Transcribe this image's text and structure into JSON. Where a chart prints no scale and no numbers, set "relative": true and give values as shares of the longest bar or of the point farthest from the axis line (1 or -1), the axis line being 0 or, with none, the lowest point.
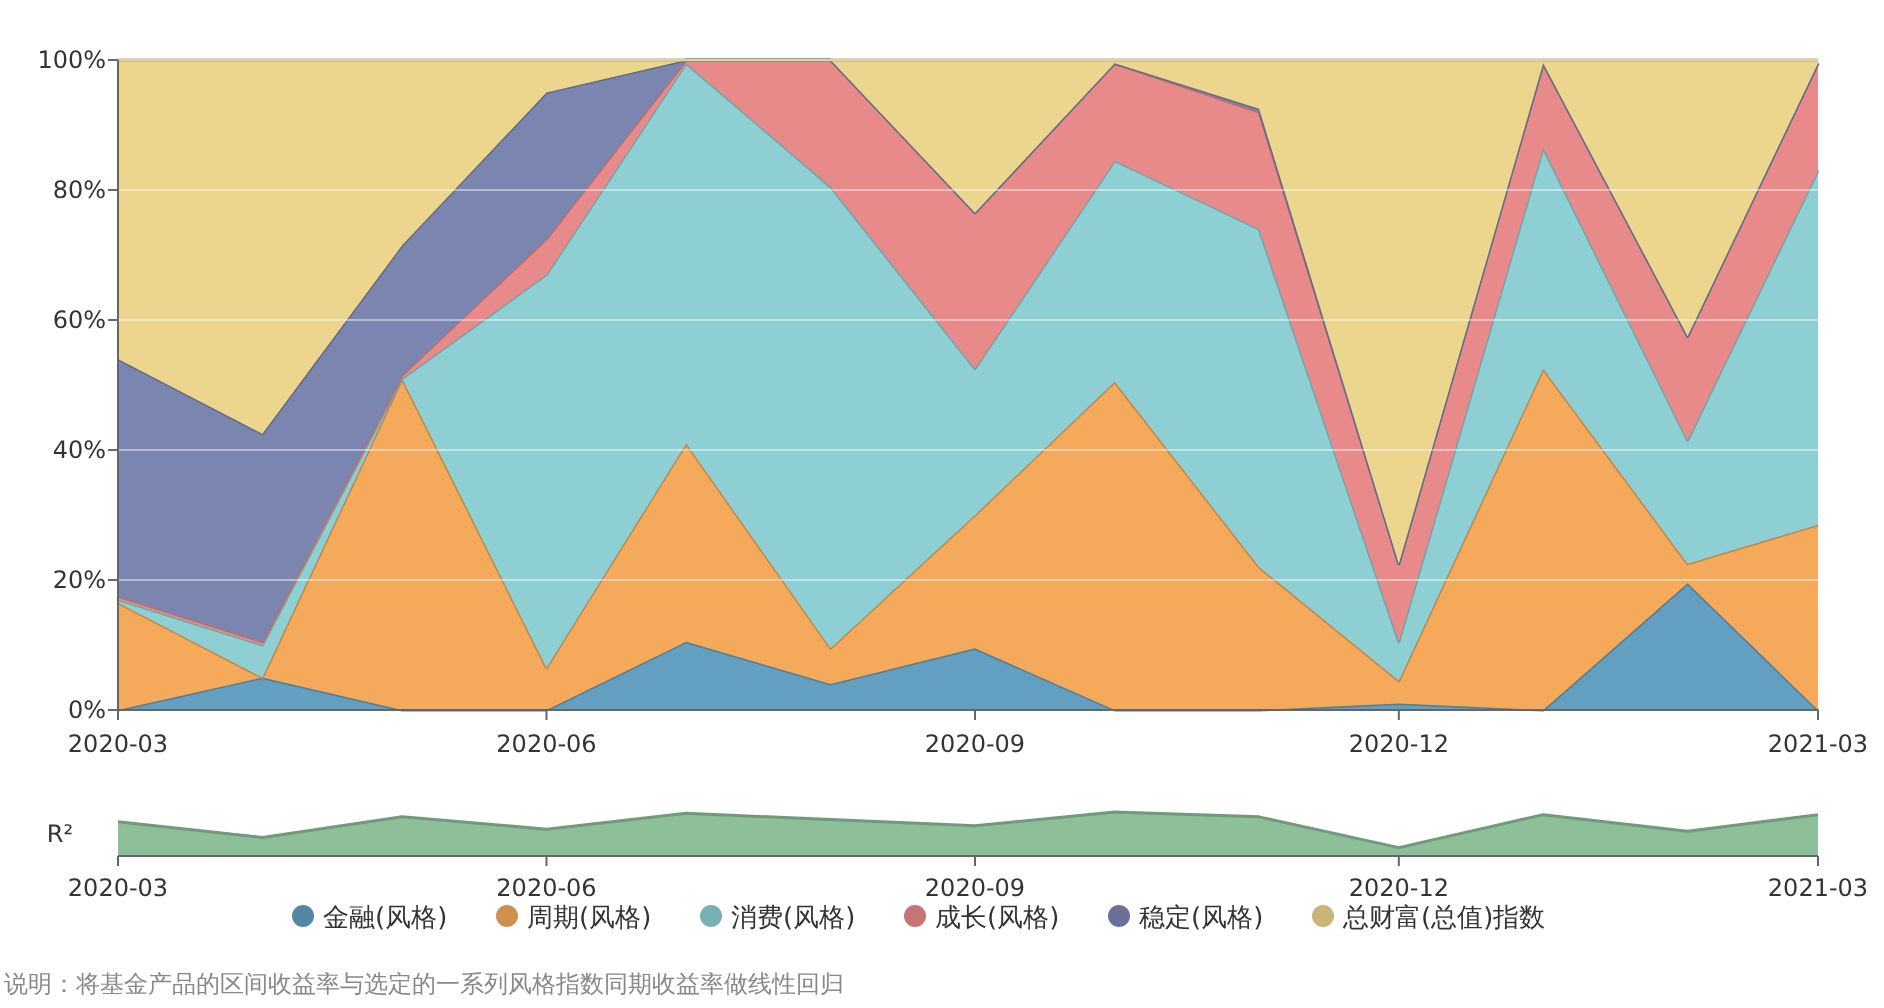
{
  "chart_data": [
    {
      "type": "area",
      "stacked": true,
      "x": [
        "2020-03",
        "2020-04",
        "2020-05",
        "2020-06",
        "2020-07",
        "2020-08",
        "2020-09",
        "2020-10",
        "2020-11",
        "2020-12",
        "2021-01",
        "2021-02",
        "2021-03"
      ],
      "xlim": [
        "2020-03",
        "2021-03"
      ],
      "xticks": [
        "2020-03",
        "2020-06",
        "2020-09",
        "2020-12",
        "2021-03"
      ],
      "ylim": [
        0,
        100
      ],
      "yticks": [
        {
          "value": 0,
          "label": "0%"
        },
        {
          "value": 20,
          "label": "20%"
        },
        {
          "value": 40,
          "label": "40%"
        },
        {
          "value": 60,
          "label": "60%"
        },
        {
          "value": 80,
          "label": "80%"
        },
        {
          "value": 100,
          "label": "100%"
        }
      ],
      "grid": "y",
      "legend": "bottom",
      "series": [
        {
          "name": "金融(风格)",
          "color": "#629fc0",
          "values": [
            0,
            5,
            0,
            0,
            10.5,
            4,
            9.5,
            0,
            0,
            1,
            0,
            19.5,
            0
          ]
        },
        {
          "name": "周期(风格)",
          "color": "#f5a95a",
          "values": [
            16.5,
            0,
            51,
            6.5,
            30.5,
            5.5,
            20.5,
            50.5,
            22,
            3.5,
            52.5,
            3,
            28.5
          ]
        },
        {
          "name": "消费(风格)",
          "color": "#8dcfd3",
          "values": [
            0.5,
            5,
            0,
            60.5,
            58.5,
            71,
            22.5,
            34,
            52,
            6,
            34,
            19,
            54.5
          ]
        },
        {
          "name": "成长(风格)",
          "color": "#e88a8a",
          "values": [
            0.5,
            0.5,
            0.5,
            5.5,
            0.5,
            19.5,
            24,
            15,
            18,
            12,
            13,
            16,
            16.5
          ]
        },
        {
          "name": "稳定(风格)",
          "color": "#7b86b0",
          "values": [
            36.5,
            32,
            20,
            22.5,
            0,
            0,
            0,
            0,
            0.5,
            0,
            0,
            0,
            0
          ]
        },
        {
          "name": "总财富(总值)指数",
          "color": "#ecd58c",
          "values": [
            46,
            57.5,
            28.5,
            5,
            0,
            0,
            23.5,
            0.5,
            7.5,
            77.5,
            0.5,
            42.5,
            0.5
          ]
        }
      ],
      "annotations": [
        "说明：将基金产品的区间收益率与选定的一系列风格指数同期收益率做线性回归"
      ]
    },
    {
      "type": "area",
      "relative": true,
      "ylabel": "R²",
      "x": [
        "2020-03",
        "2020-04",
        "2020-05",
        "2020-06",
        "2020-07",
        "2020-08",
        "2020-09",
        "2020-10",
        "2020-11",
        "2020-12",
        "2021-01",
        "2021-02",
        "2021-03"
      ],
      "xlim": [
        "2020-03",
        "2021-03"
      ],
      "xticks": [
        "2020-03",
        "2020-06",
        "2020-09",
        "2020-12",
        "2021-03"
      ],
      "series": [
        {
          "color": "#8dbf98",
          "values": [
            0.78,
            0.42,
            0.89,
            0.61,
            0.97,
            0.83,
            0.69,
            1,
            0.89,
            0.19,
            0.94,
            0.56,
            0.94
          ]
        }
      ]
    }
  ]
}
